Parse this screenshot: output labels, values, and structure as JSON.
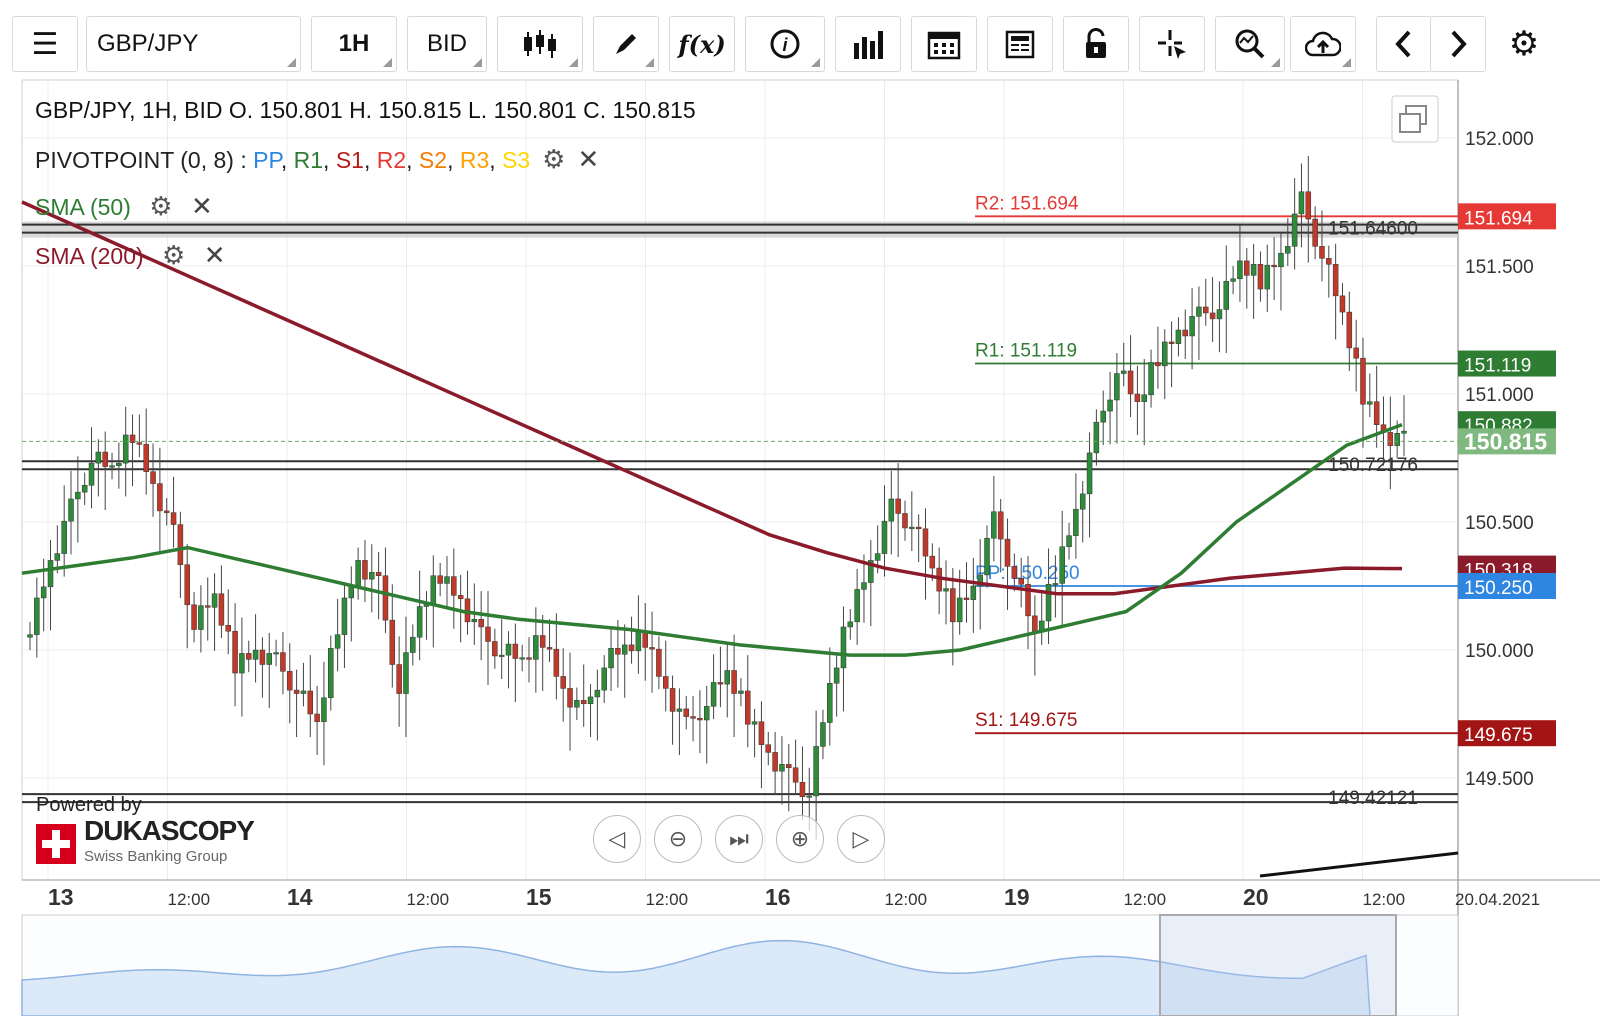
{
  "toolbar": {
    "symbol": "GBP/JPY",
    "timeframe": "1H",
    "price_type": "BID",
    "fx_label": "f(x)",
    "info_label": "i"
  },
  "header": {
    "ohlc": "GBP/JPY, 1H, BID   O. 150.801  H. 150.815  L. 150.801  C. 150.815"
  },
  "indicators": {
    "pivot_name": "PIVOTPOINT (0, 8)",
    "pivot_sep": " : ",
    "pivot_legend": [
      {
        "label": "PP",
        "color": "#2f86e0"
      },
      {
        "label": "R1",
        "color": "#2e7d32"
      },
      {
        "label": "S1",
        "color": "#b71c1c"
      },
      {
        "label": "R2",
        "color": "#e53935"
      },
      {
        "label": "S2",
        "color": "#f57c00"
      },
      {
        "label": "R3",
        "color": "#ffa000"
      },
      {
        "label": "S3",
        "color": "#ffd600"
      }
    ],
    "sma50": {
      "label": "SMA (50)",
      "color": "#2e7d32"
    },
    "sma200": {
      "label": "SMA (200)",
      "color": "#8b1a2b"
    }
  },
  "levels": {
    "r2": {
      "label": "R2: 151.694",
      "value": 151.694,
      "color": "#e53935",
      "badge": "151.694"
    },
    "r1": {
      "label": "R1: 151.119",
      "value": 151.119,
      "color": "#2e7d32",
      "badge": "151.119"
    },
    "pp": {
      "label": "PP: 150.250",
      "value": 150.25,
      "color": "#2f86e0",
      "badge": "150.250"
    },
    "s1": {
      "label": "S1: 149.675",
      "value": 149.675,
      "color": "#a31515",
      "badge": "149.675"
    },
    "sma50_badge": "150.882",
    "sma200_badge": "150.318",
    "current": {
      "value": 150.815,
      "badge": "150.815",
      "color": "#6aa96a"
    }
  },
  "hlines": [
    {
      "label": "151.64600",
      "value": 151.646
    },
    {
      "label": "150.72176",
      "value": 150.72176
    },
    {
      "label": "149.42121",
      "value": 149.42121
    }
  ],
  "chart_data": {
    "type": "candlestick",
    "symbol": "GBP/JPY",
    "timeframe": "1H",
    "y_ticks": [
      "152.000",
      "151.500",
      "151.000",
      "150.500",
      "150.000",
      "149.500"
    ],
    "y_values": [
      152.0,
      151.5,
      151.0,
      150.5,
      150.0,
      149.5
    ],
    "x_ticks": [
      {
        "label": "13",
        "major": true
      },
      {
        "label": "12:00",
        "major": false
      },
      {
        "label": "14",
        "major": true
      },
      {
        "label": "12:00",
        "major": false
      },
      {
        "label": "15",
        "major": true
      },
      {
        "label": "12:00",
        "major": false
      },
      {
        "label": "16",
        "major": true
      },
      {
        "label": "12:00",
        "major": false
      },
      {
        "label": "19",
        "major": true
      },
      {
        "label": "12:00",
        "major": false
      },
      {
        "label": "20",
        "major": true
      },
      {
        "label": "12:00",
        "major": false
      },
      {
        "label": "20.04.2021",
        "major": false
      }
    ],
    "close_path": [
      150.1,
      150.35,
      150.55,
      150.75,
      150.7,
      150.85,
      150.65,
      150.45,
      150.1,
      150.2,
      149.95,
      150.0,
      149.95,
      149.85,
      149.7,
      150.1,
      150.35,
      150.25,
      149.85,
      150.15,
      150.3,
      150.2,
      150.05,
      150.0,
      149.95,
      150.05,
      149.85,
      149.75,
      149.95,
      150.0,
      150.05,
      149.85,
      149.7,
      149.8,
      149.9,
      149.75,
      149.6,
      149.5,
      149.45,
      149.85,
      150.15,
      150.35,
      150.55,
      150.5,
      150.3,
      150.15,
      150.25,
      150.5,
      150.3,
      150.05,
      150.3,
      150.55,
      150.85,
      151.1,
      150.95,
      151.15,
      151.25,
      151.3,
      151.35,
      151.5,
      151.45,
      151.55,
      151.75,
      151.55,
      151.3,
      151.0,
      150.85,
      150.815
    ],
    "sma50_path": [
      150.3,
      150.33,
      150.36,
      150.4,
      150.35,
      150.3,
      150.25,
      150.2,
      150.15,
      150.12,
      150.1,
      150.08,
      150.05,
      150.02,
      150.0,
      149.98,
      149.98,
      150.0,
      150.05,
      150.1,
      150.15,
      150.3,
      150.5,
      150.65,
      150.8,
      150.88
    ],
    "sma200_path": [
      151.75,
      151.65,
      151.55,
      151.45,
      151.35,
      151.25,
      151.15,
      151.05,
      150.95,
      150.85,
      150.75,
      150.65,
      150.55,
      150.45,
      150.38,
      150.32,
      150.28,
      150.25,
      150.22,
      150.22,
      150.25,
      150.28,
      150.3,
      150.32,
      150.318
    ]
  },
  "branding": {
    "powered_by": "Powered by",
    "name": "DUKASCOPY",
    "subtitle": "Swiss Banking Group"
  },
  "nav_controls": [
    "prev",
    "zoom-out",
    "reset",
    "zoom-in",
    "next"
  ]
}
